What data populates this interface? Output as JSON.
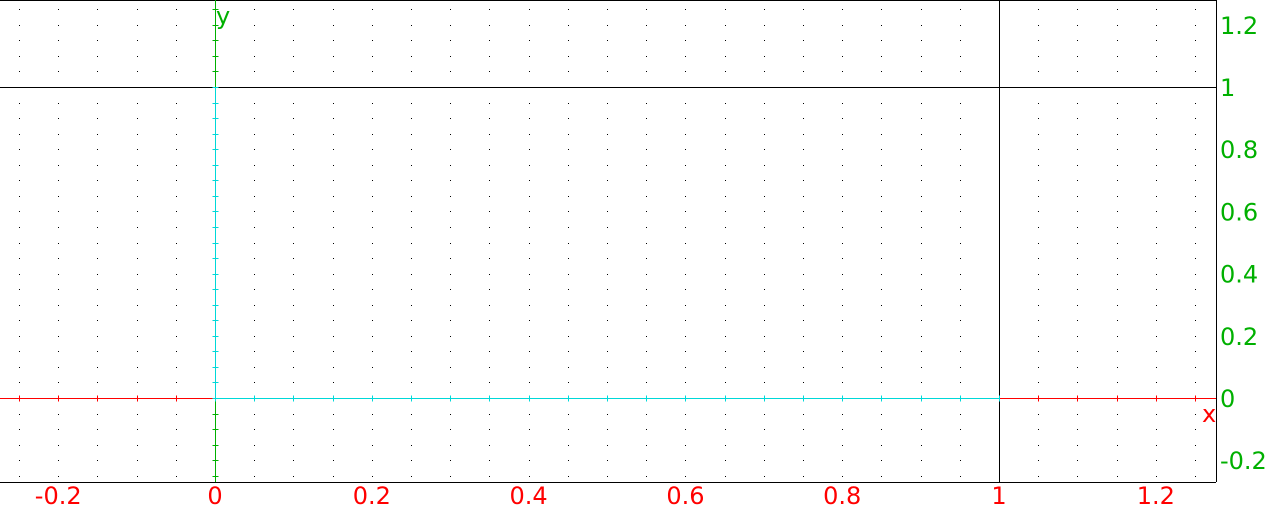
{
  "chart_data": {
    "type": "line",
    "xlabel": "x",
    "ylabel": "y",
    "xlim": [
      -0.275,
      1.275
    ],
    "ylim": [
      -0.27,
      1.27
    ],
    "x_ticks": [
      {
        "value": -0.2,
        "label": "-0.2"
      },
      {
        "value": 0,
        "label": "0"
      },
      {
        "value": 0.2,
        "label": "0.2"
      },
      {
        "value": 0.4,
        "label": "0.4"
      },
      {
        "value": 0.6,
        "label": "0.6"
      },
      {
        "value": 0.8,
        "label": "0.8"
      },
      {
        "value": 1,
        "label": "1"
      },
      {
        "value": 1.2,
        "label": "1.2"
      }
    ],
    "y_ticks": [
      {
        "value": 1.2,
        "label": "1.2"
      },
      {
        "value": 1,
        "label": "1"
      },
      {
        "value": 0.8,
        "label": "0.8"
      },
      {
        "value": 0.6,
        "label": "0.6"
      },
      {
        "value": 0.4,
        "label": "0.4"
      },
      {
        "value": 0.2,
        "label": "0.2"
      },
      {
        "value": 0,
        "label": "0"
      },
      {
        "value": -0.2,
        "label": "-0.2"
      }
    ],
    "grid": "dotted",
    "grid_step": 0.05,
    "lines": [
      {
        "kind": "horizontal",
        "y": 1,
        "color": "#000000"
      },
      {
        "kind": "vertical",
        "x": 1,
        "color": "#000000"
      }
    ],
    "highlighted_segments": [
      {
        "axis": "x",
        "from": 0,
        "to": 1,
        "color": "#00d8d8"
      },
      {
        "axis": "y",
        "from": 0,
        "to": 1,
        "color": "#00d8d8"
      }
    ],
    "colors": {
      "x_axis": "#ff0000",
      "y_axis": "#00b000",
      "x_labels": "#ff0000",
      "y_labels": "#00b000",
      "frame": "#000000",
      "grid_dots": "#000000"
    }
  }
}
